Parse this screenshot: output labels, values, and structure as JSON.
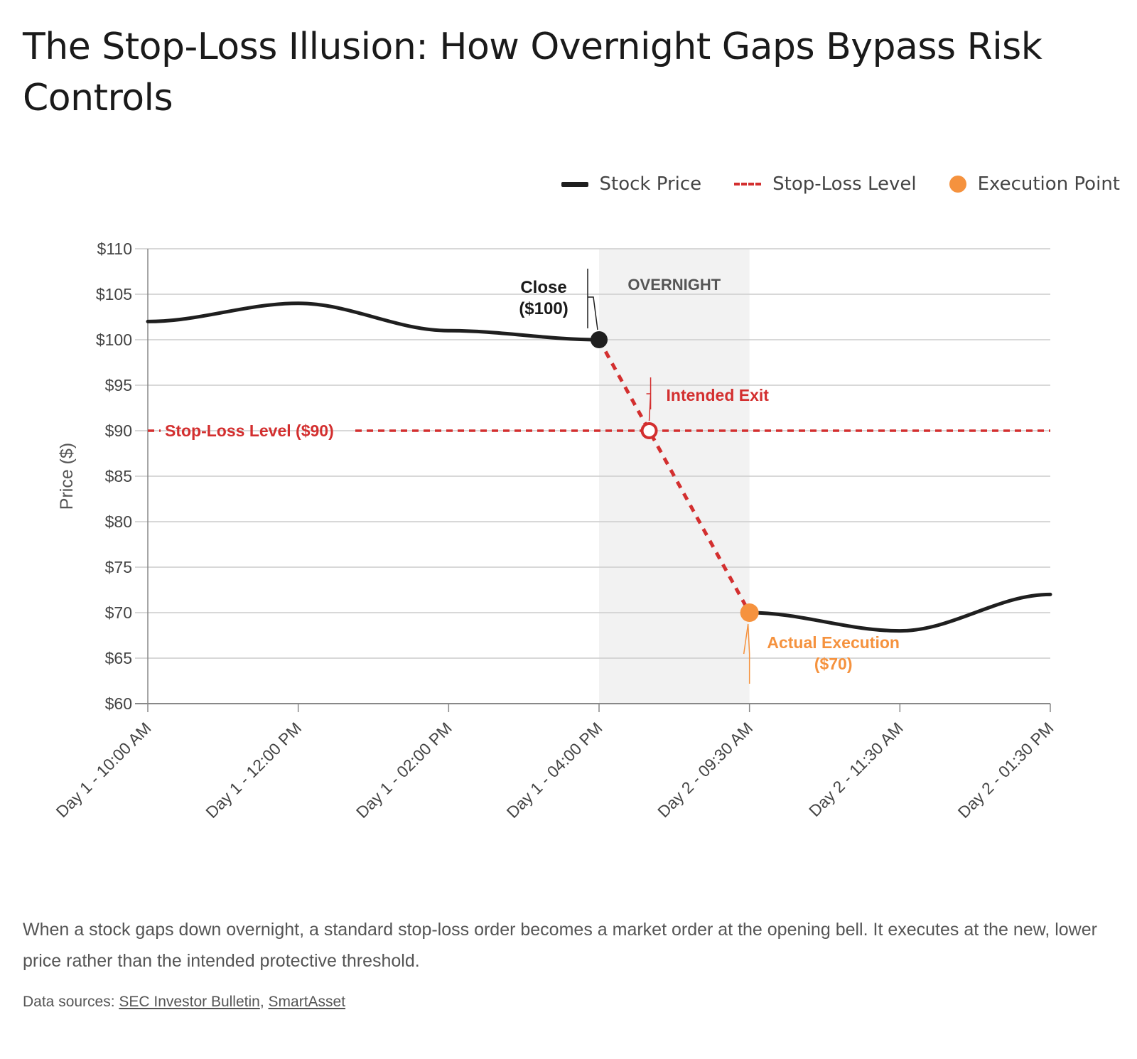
{
  "title": "The Stop-Loss Illusion: How Overnight Gaps Bypass Risk Controls",
  "legend": {
    "stock_price": "Stock Price",
    "stop_loss": "Stop-Loss Level",
    "execution": "Execution Point"
  },
  "caption": "When a stock gaps down overnight, a standard stop-loss order becomes a market order at the opening bell. It executes at the new, lower price rather than the intended protective threshold.",
  "sources": {
    "prefix": "Data sources: ",
    "links": [
      "SEC Investor Bulletin",
      "SmartAsset"
    ],
    "separator": ", "
  },
  "colors": {
    "price_line": "#1f1f1f",
    "stop_loss": "#d32f2f",
    "execution": "#f5923e",
    "overnight_band": "#f2f2f2",
    "grid": "#cccccc"
  },
  "chart_data": {
    "type": "line",
    "ylabel": "Price ($)",
    "xlabel": "",
    "ylim": [
      60,
      110
    ],
    "yticks": [
      60,
      65,
      70,
      75,
      80,
      85,
      90,
      95,
      100,
      105,
      110
    ],
    "ytick_labels": [
      "$60",
      "$65",
      "$70",
      "$75",
      "$80",
      "$85",
      "$90",
      "$95",
      "$100",
      "$105",
      "$110"
    ],
    "categories": [
      "Day 1 - 10:00 AM",
      "Day 1 - 12:00 PM",
      "Day 1 - 02:00 PM",
      "Day 1 - 04:00 PM",
      "Day 2 - 09:30 AM",
      "Day 2 - 11:30 AM",
      "Day 2 - 01:30 PM"
    ],
    "grid": true,
    "legend_position": "top-right",
    "series": [
      {
        "name": "Stock Price",
        "day1": [
          102,
          104,
          101,
          100
        ],
        "day2": [
          70,
          68,
          72
        ]
      }
    ],
    "gap": {
      "from": 100,
      "to": 70
    },
    "stop_loss_level": 90,
    "stop_loss_label": "Stop-Loss Level ($90)",
    "overnight_label": "OVERNIGHT",
    "annotations": [
      {
        "text_lines": [
          "Close",
          "($100)"
        ],
        "value": 100
      },
      {
        "text_lines": [
          "Intended Exit"
        ],
        "value": 90
      },
      {
        "text_lines": [
          "Actual Execution",
          "($70)"
        ],
        "value": 70
      }
    ]
  }
}
